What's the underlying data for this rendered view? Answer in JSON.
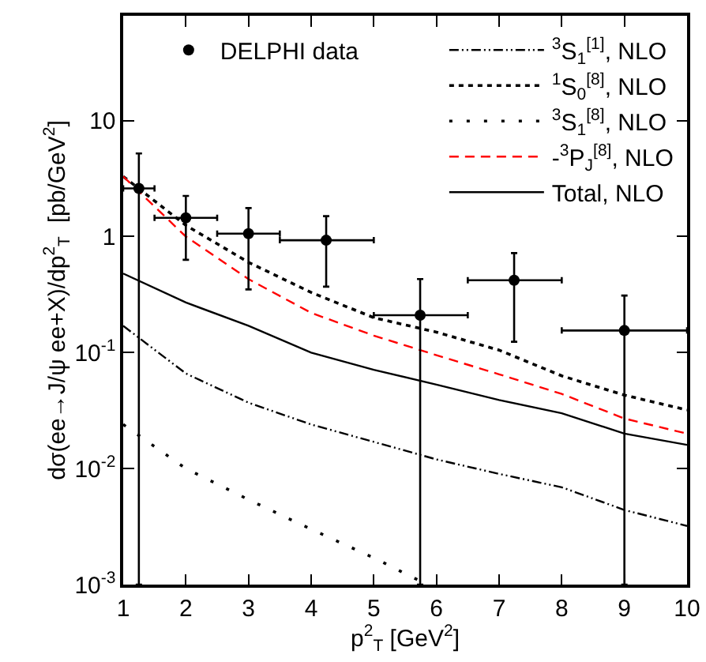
{
  "chart_data": {
    "type": "line",
    "xlabel": "p$^{2}$$_{T}$ [GeV$^{2}$]",
    "ylabel": "dσ(ee→J/ψ ee+X)/dp$^{2}$$_{T}$  [pb/GeV$^{2}$]",
    "log": "y",
    "grid": false,
    "legend": "top right",
    "xlim": [
      1,
      10
    ],
    "xticks": [
      1,
      2,
      3,
      4,
      5,
      6,
      7,
      8,
      9,
      10
    ],
    "ylim": [
      0.001,
      80
    ],
    "yticks": [
      {
        "value": 0.001,
        "label": "10$^{-3}$"
      },
      {
        "value": 0.01,
        "label": "10$^{-2}$"
      },
      {
        "value": 0.1,
        "label": "10$^{-1}$"
      },
      1,
      10
    ],
    "series": [
      {
        "name": "DELPHI data",
        "type": "scatter",
        "marker": "circle",
        "color": "#000000",
        "x": [
          1.25,
          2.0,
          3.0,
          4.24,
          5.74,
          7.24,
          9.0
        ],
        "values": [
          2.6,
          1.45,
          1.06,
          0.93,
          0.21,
          0.42,
          0.155
        ],
        "errors": [
          [
            0.001,
            5.2
          ],
          [
            0.63,
            2.24
          ],
          [
            0.35,
            1.76
          ],
          [
            0.37,
            1.5
          ],
          [
            0.001,
            0.43
          ],
          [
            0.124,
            0.72
          ],
          [
            0.001,
            0.31
          ]
        ],
        "xerrors": [
          [
            1.0,
            1.5
          ],
          [
            1.5,
            2.5
          ],
          [
            2.5,
            3.5
          ],
          [
            3.5,
            5.0
          ],
          [
            5.0,
            6.5
          ],
          [
            6.5,
            8.0
          ],
          [
            8.0,
            10.0
          ]
        ]
      },
      {
        "name": "$^{3}$S$_{1}$$^{[1]}$, NLO",
        "line_style": "dashdot",
        "color": "#000000",
        "x": [
          1,
          2,
          3,
          4,
          5,
          6,
          7,
          8,
          9,
          10
        ],
        "values": [
          0.17,
          0.066,
          0.037,
          0.024,
          0.017,
          0.012,
          0.009,
          0.0069,
          0.0044,
          0.0032
        ]
      },
      {
        "name": "$^{1}$S$_{0}$$^{[8]}$, NLO",
        "line_style": "dotted",
        "color": "#000000",
        "x": [
          1,
          2,
          3,
          4,
          5,
          6,
          7,
          8,
          9,
          10
        ],
        "values": [
          3.3,
          1.25,
          0.6,
          0.33,
          0.2,
          0.15,
          0.105,
          0.063,
          0.043,
          0.032
        ]
      },
      {
        "name": "$^{3}$S$_{1}$$^{[8]}$, NLO",
        "line_style": "loosely dotted",
        "color": "#000000",
        "x": [
          1,
          2,
          3,
          4,
          5,
          5.7
        ],
        "values": [
          0.024,
          0.01,
          0.0054,
          0.003,
          0.0017,
          0.0011
        ]
      },
      {
        "name": "-$^{3}$P$_{J}$$^{[8]}$, NLO",
        "line_style": "dashed",
        "color": "#ff0000",
        "x": [
          1,
          2,
          3,
          4,
          5,
          6,
          7,
          8,
          9,
          10
        ],
        "values": [
          3.3,
          1.0,
          0.43,
          0.22,
          0.14,
          0.095,
          0.065,
          0.044,
          0.027,
          0.02
        ]
      },
      {
        "name": "Total, NLO",
        "line_style": "solid",
        "color": "#000000",
        "x": [
          1,
          2,
          3,
          4,
          5,
          6,
          7,
          8,
          9,
          10
        ],
        "values": [
          0.48,
          0.27,
          0.17,
          0.1,
          0.071,
          0.053,
          0.039,
          0.03,
          0.02,
          0.016
        ]
      }
    ]
  }
}
